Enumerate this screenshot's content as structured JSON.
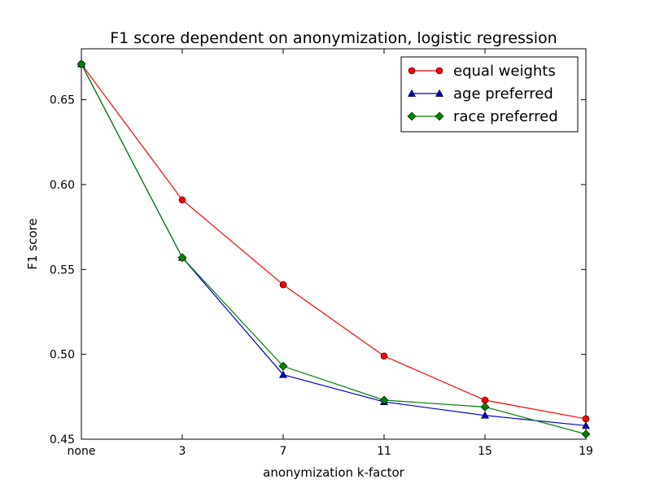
{
  "chart_data": {
    "type": "line",
    "title": "F1 score dependent on anonymization, logistic regression",
    "xlabel": "anonymization k-factor",
    "ylabel": "F1 score",
    "categories": [
      "none",
      "3",
      "7",
      "11",
      "15",
      "19"
    ],
    "ylim": [
      0.45,
      0.68
    ],
    "yticks": [
      "0.45",
      "0.50",
      "0.55",
      "0.60",
      "0.65"
    ],
    "grid": false,
    "legend_position": "top-right",
    "series": [
      {
        "name": "equal weights",
        "color": "#ff0000",
        "marker": "circle",
        "values": [
          0.671,
          0.591,
          0.541,
          0.499,
          0.473,
          0.462
        ]
      },
      {
        "name": "age preferred",
        "color": "#0000cc",
        "marker": "triangle",
        "values": [
          0.671,
          0.557,
          0.488,
          0.472,
          0.464,
          0.458
        ]
      },
      {
        "name": "race preferred",
        "color": "#008000",
        "marker": "diamond",
        "values": [
          0.671,
          0.557,
          0.493,
          0.473,
          0.469,
          0.453
        ]
      }
    ]
  }
}
